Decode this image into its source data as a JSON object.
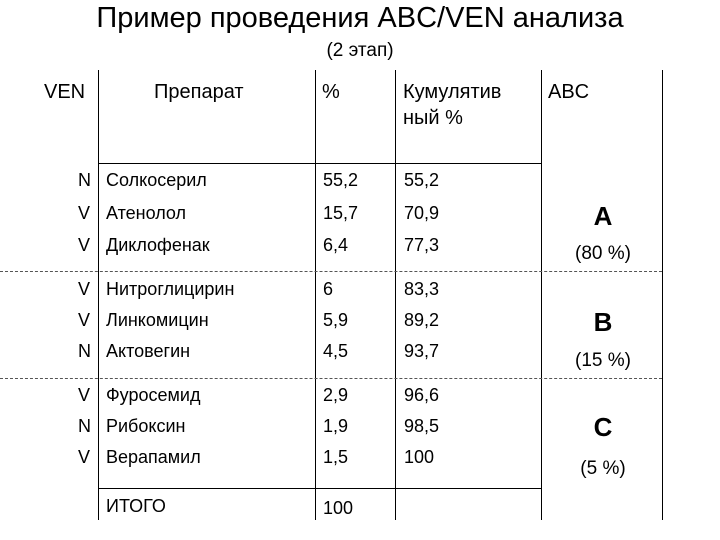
{
  "title": "Пример проведения ABC/VEN анализа",
  "subtitle": "(2 этап)",
  "headers": {
    "ven": "VEN",
    "drug": "Препарат",
    "percent": "%",
    "cumulative_line1": "Кумулятив",
    "cumulative_line2": "ный %",
    "abc": "ABC"
  },
  "rows": [
    {
      "ven": "N",
      "drug": "Солкосерил",
      "percent": "55,2",
      "cumulative": "55,2"
    },
    {
      "ven": "V",
      "drug": "Атенолол",
      "percent": "15,7",
      "cumulative": "70,9"
    },
    {
      "ven": "V",
      "drug": "Диклофенак",
      "percent": "6,4",
      "cumulative": "77,3"
    },
    {
      "ven": "V",
      "drug": "Нитроглицирин",
      "percent": "6",
      "cumulative": "83,3"
    },
    {
      "ven": "V",
      "drug": "Линкомицин",
      "percent": "5,9",
      "cumulative": "89,2"
    },
    {
      "ven": "N",
      "drug": "Актовегин",
      "percent": "4,5",
      "cumulative": "93,7"
    },
    {
      "ven": "V",
      "drug": "Фуросемид",
      "percent": "2,9",
      "cumulative": "96,6"
    },
    {
      "ven": "N",
      "drug": "Рибоксин",
      "percent": "1,9",
      "cumulative": "98,5"
    },
    {
      "ven": "V",
      "drug": "Верапамил",
      "percent": "1,5",
      "cumulative": "100"
    }
  ],
  "total": {
    "label": "ИТОГО",
    "percent": "100"
  },
  "groups": [
    {
      "letter": "A",
      "share": "(80 %)"
    },
    {
      "letter": "B",
      "share": "(15 %)"
    },
    {
      "letter": "C",
      "share": "(5 %)"
    }
  ]
}
